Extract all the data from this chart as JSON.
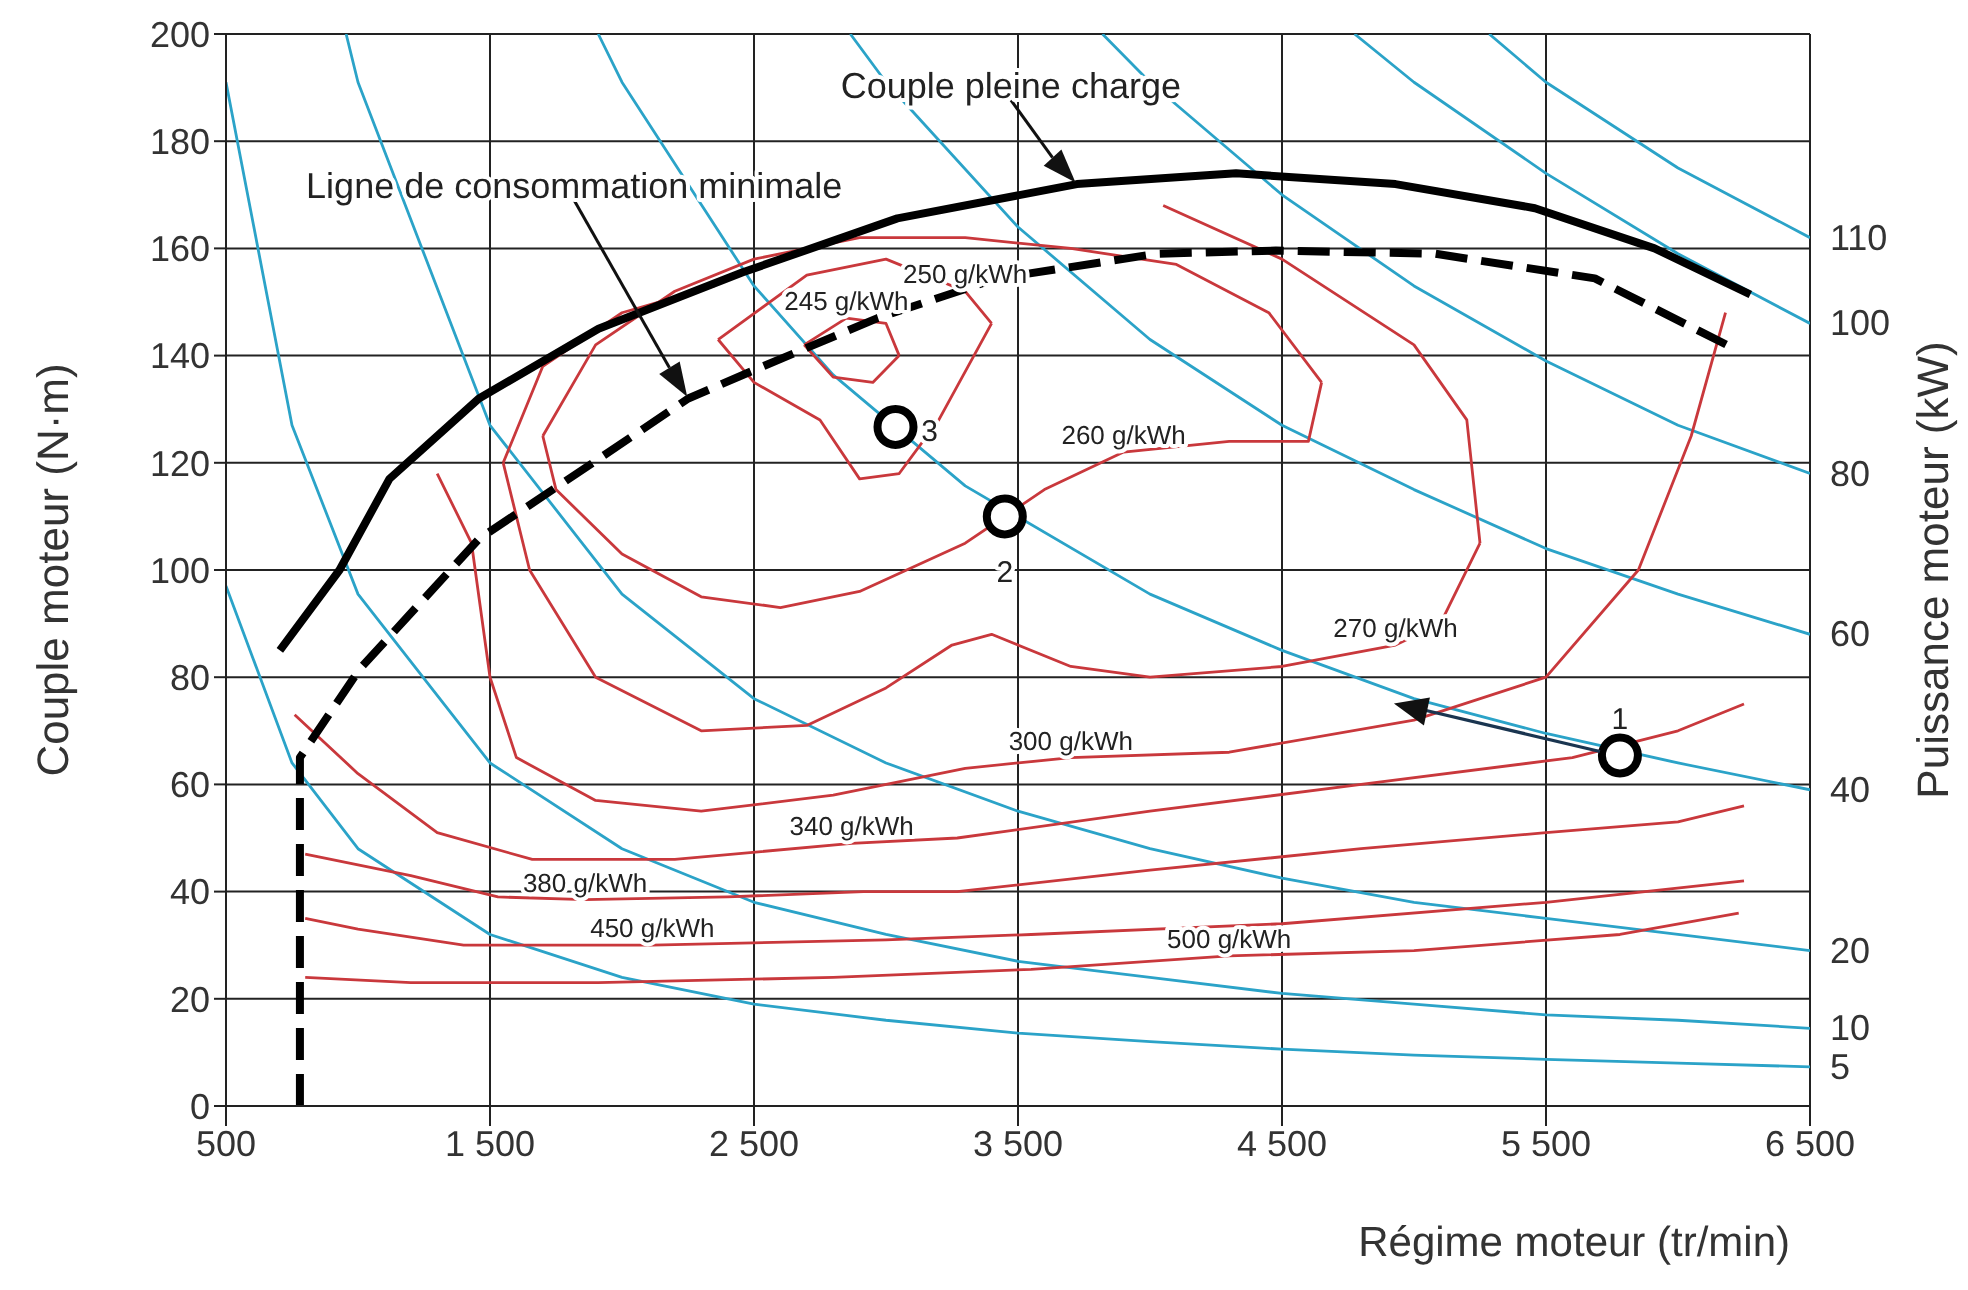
{
  "chart_data": {
    "type": "line",
    "xlabel": "Régime moteur (tr/min)",
    "ylabel": "Couple moteur (N·m)",
    "y2label": "Puissance moteur (kW)",
    "xlim": [
      500,
      6500
    ],
    "xticks": [
      500,
      {
        "value": 1500,
        "label": "1 500"
      },
      {
        "value": 2500,
        "label": "2 500"
      },
      {
        "value": 3500,
        "label": "3 500"
      },
      {
        "value": 4500,
        "label": "4 500"
      },
      {
        "value": 5500,
        "label": "5 500"
      },
      {
        "value": 6500,
        "label": "6 500"
      }
    ],
    "ylim": [
      0,
      200
    ],
    "yticks": [
      0,
      20,
      40,
      60,
      80,
      100,
      120,
      140,
      160,
      180,
      200
    ],
    "grid": true,
    "legend": false,
    "marker": "none",
    "series": [
      {
        "name": "110",
        "color": "#2ba3c8",
        "x": [
          5285,
          5500,
          6000,
          6500
        ],
        "values": [
          200,
          191,
          175,
          162
        ]
      },
      {
        "name": "100",
        "color": "#2ba3c8",
        "x": [
          4775,
          5000,
          5500,
          6000,
          6500
        ],
        "values": [
          200,
          191,
          174,
          159,
          146
        ]
      },
      {
        "name": "80",
        "color": "#2ba3c8",
        "x": [
          3820,
          4000,
          4500,
          5000,
          5500,
          6000,
          6500
        ],
        "values": [
          200,
          191,
          170,
          153,
          139,
          127,
          118
        ]
      },
      {
        "name": "60",
        "color": "#2ba3c8",
        "x": [
          2865,
          3000,
          3500,
          4000,
          4500,
          5000,
          5500,
          6000,
          6500
        ],
        "values": [
          200,
          191,
          164,
          143,
          127,
          115,
          104,
          95.5,
          88
        ]
      },
      {
        "name": "40",
        "color": "#2ba3c8",
        "x": [
          1910,
          2000,
          2500,
          2800,
          3300,
          4000,
          4500,
          5000,
          5500,
          6000,
          6500
        ],
        "values": [
          200,
          191,
          153,
          136.4,
          115.7,
          95.5,
          85,
          76,
          69.5,
          64,
          59
        ]
      },
      {
        "name": "20",
        "color": "#2ba3c8",
        "x": [
          955,
          1000,
          1500,
          2000,
          2500,
          3000,
          3500,
          4000,
          4500,
          5000,
          5500,
          6000,
          6500
        ],
        "values": [
          200,
          191,
          127,
          95.5,
          76,
          64,
          55,
          48,
          42.5,
          38,
          35,
          32,
          29
        ]
      },
      {
        "name": "10",
        "color": "#2ba3c8",
        "x": [
          500,
          750,
          1000,
          1500,
          2000,
          2500,
          3000,
          3500,
          4000,
          4500,
          5000,
          5500,
          6000,
          6500
        ],
        "values": [
          191,
          127,
          95.5,
          64,
          48,
          38,
          32,
          27,
          24,
          21,
          19,
          17,
          16,
          14.5
        ]
      },
      {
        "name": "5",
        "color": "#2ba3c8",
        "x": [
          500,
          750,
          1000,
          1500,
          2000,
          2500,
          3000,
          3500,
          4000,
          4500,
          5000,
          5500,
          6000,
          6500
        ],
        "values": [
          97,
          64,
          48,
          32,
          24,
          19,
          16,
          13.6,
          12,
          10.6,
          9.5,
          8.7,
          8,
          7.3
        ]
      },
      {
        "color": "#c9383c",
        "x": [
          2690,
          2850,
          3000,
          3050
        ],
        "values": [
          142,
          147,
          146,
          140
        ]
      },
      {
        "color": "#c9383c",
        "x": [
          2690,
          2800,
          2950,
          3050
        ],
        "values": [
          142,
          136,
          135,
          140
        ]
      },
      {
        "color": "#c9383c",
        "x": [
          2364,
          2700,
          3000,
          3300,
          3400
        ],
        "values": [
          143,
          155,
          158,
          152,
          146
        ]
      },
      {
        "color": "#c9383c",
        "x": [
          2364,
          2500,
          2750,
          2900,
          3050,
          3200,
          3400
        ],
        "values": [
          143,
          135,
          128,
          117,
          118,
          128,
          146
        ]
      },
      {
        "color": "#c9383c",
        "x": [
          1700,
          1900,
          2200,
          2500,
          2900,
          3300,
          3700,
          4100,
          4450,
          4650
        ],
        "values": [
          125,
          142,
          152,
          158,
          162,
          162,
          160,
          157,
          148,
          135
        ]
      },
      {
        "color": "#c9383c",
        "x": [
          1700,
          1750,
          2000,
          2300,
          2600,
          2900,
          3300,
          3600,
          3900,
          4300,
          4600,
          4650
        ],
        "values": [
          125,
          115,
          103,
          95,
          93,
          96,
          105,
          115,
          122,
          124,
          124,
          135
        ]
      },
      {
        "color": "#c9383c",
        "x": [
          1550,
          1700,
          2000,
          2350
        ],
        "values": [
          120,
          138,
          148,
          153
        ]
      },
      {
        "color": "#c9383c",
        "x": [
          1550,
          1650,
          1900,
          2300,
          2700,
          3000,
          3250,
          3400,
          3700,
          4000,
          4500,
          4930,
          5100,
          5250
        ],
        "values": [
          120,
          100,
          80,
          70,
          71,
          78,
          86,
          88,
          82,
          80,
          82,
          86,
          90,
          105
        ]
      },
      {
        "color": "#c9383c",
        "x": [
          4050,
          4500,
          5000,
          5200,
          5250
        ],
        "values": [
          168,
          158,
          142,
          128,
          105
        ]
      },
      {
        "color": "#c9383c",
        "x": [
          1300,
          1430,
          1500,
          1600,
          1900,
          2300,
          2800,
          3300,
          3700,
          4300,
          5000,
          5500,
          5850,
          6050,
          6180
        ],
        "values": [
          118,
          105,
          80,
          65,
          57,
          55,
          58,
          63,
          65,
          66,
          72,
          80,
          100,
          125,
          148
        ]
      },
      {
        "color": "#c9383c",
        "x": [
          760,
          1000,
          1300,
          1660,
          2200,
          2870,
          3270,
          4000,
          4800,
          5600,
          6000,
          6250
        ],
        "values": [
          73,
          62,
          51,
          46,
          46,
          49,
          50,
          55,
          60,
          65,
          70,
          75
        ]
      },
      {
        "color": "#c9383c",
        "x": [
          800,
          1200,
          1530,
          1860,
          2400,
          2915,
          3270,
          4000,
          4800,
          5500,
          6000,
          6250
        ],
        "values": [
          47,
          43,
          39,
          38.5,
          39,
          40,
          40,
          44,
          48,
          51,
          53,
          56
        ]
      },
      {
        "color": "#c9383c",
        "x": [
          800,
          1000,
          1400,
          2115,
          3000,
          3550,
          4500,
          5500,
          6250
        ],
        "values": [
          35,
          33,
          30,
          30,
          31,
          32,
          34,
          38,
          42
        ]
      },
      {
        "color": "#c9383c",
        "x": [
          800,
          1200,
          1910,
          2800,
          3550,
          4300,
          5000,
          5780,
          6230
        ],
        "values": [
          24,
          23,
          23,
          24,
          25.5,
          28,
          29,
          32,
          36
        ]
      },
      {
        "color": "#000000",
        "line_style": "solid",
        "x": [
          704,
          930,
          1119,
          1458,
          1911,
          2455,
          3043,
          3723,
          4326,
          4930,
          5458,
          5911,
          6274
        ],
        "values": [
          85,
          100,
          117,
          132,
          145,
          155.5,
          165.6,
          172,
          174,
          172,
          167.5,
          160,
          151.4
        ]
      },
      {
        "color": "#000000",
        "line_style": "dashed",
        "x": [
          780,
          780,
          1006,
          1458,
          1911,
          2251,
          2515,
          2968,
          3421,
          4025,
          4477,
          5081,
          5685,
          6213
        ],
        "values": [
          0,
          65,
          81.5,
          105.8,
          120.7,
          132,
          137.6,
          147,
          154.4,
          159,
          159.6,
          159,
          154.4,
          141.3
        ]
      },
      {
        "type": "scatter",
        "marker": "circle",
        "color": "#000000",
        "x": [
          5780,
          3450,
          3036
        ],
        "values": [
          65.4,
          110,
          126.7
        ]
      }
    ],
    "annotations": [
      {
        "text": "Couple pleine charge",
        "x": 3723,
        "y": 172
      },
      "Ligne de consommation minimale",
      {
        "text": "245 g/kWh",
        "x": 2850,
        "y": 147
      },
      {
        "text": "250 g/kWh",
        "x": 3300,
        "y": 152
      },
      {
        "text": "260 g/kWh",
        "x": 3900,
        "y": 122
      },
      {
        "text": "270 g/kWh",
        "x": 4930,
        "y": 86
      },
      {
        "text": "300 g/kWh",
        "x": 3700,
        "y": 65
      },
      {
        "text": "340 g/kWh",
        "x": 2870,
        "y": 49
      },
      {
        "text": "380 g/kWh",
        "x": 1860,
        "y": 38.5
      },
      {
        "text": "450 g/kWh",
        "x": 2115,
        "y": 30
      },
      {
        "text": "500 g/kWh",
        "x": 4300,
        "y": 28
      },
      {
        "text": "1",
        "x": 5780,
        "y": 65.4
      },
      {
        "text": "2",
        "x": 3450,
        "y": 110
      },
      {
        "text": "3",
        "x": 3036,
        "y": 126.7
      }
    ]
  }
}
